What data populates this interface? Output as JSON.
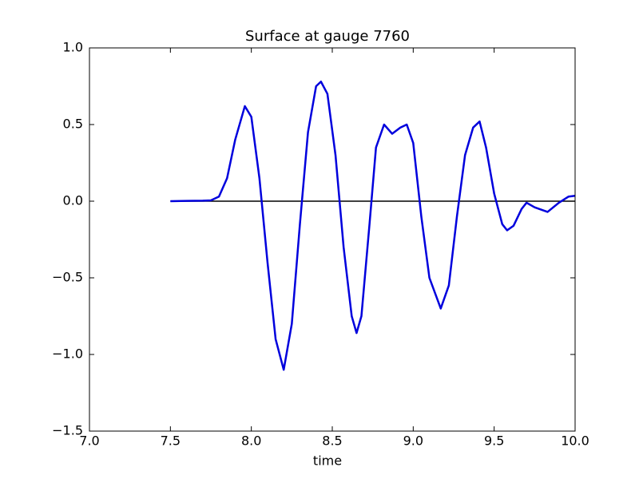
{
  "chart_data": {
    "type": "line",
    "title": "Surface at gauge 7760",
    "xlabel": "time",
    "xlim": [
      7.0,
      10.0
    ],
    "ylim": [
      -1.5,
      1.0
    ],
    "xticks": [
      {
        "value": 7.0,
        "label": "7.0"
      },
      {
        "value": 7.5,
        "label": "7.5"
      },
      {
        "value": 8.0,
        "label": "8.0"
      },
      {
        "value": 8.5,
        "label": "8.5"
      },
      {
        "value": 9.0,
        "label": "9.0"
      },
      {
        "value": 9.5,
        "label": "9.5"
      },
      {
        "value": 10.0,
        "label": "10.0"
      }
    ],
    "yticks": [
      {
        "value": -1.5,
        "label": "−1.5"
      },
      {
        "value": -1.0,
        "label": "−1.0"
      },
      {
        "value": -0.5,
        "label": "−0.5"
      },
      {
        "value": 0.0,
        "label": "0.0"
      },
      {
        "value": 0.5,
        "label": "0.5"
      },
      {
        "value": 1.0,
        "label": "1.0"
      }
    ],
    "series": [
      {
        "color": "#000000",
        "x": [
          7.5,
          10.0
        ],
        "values": [
          0,
          0
        ]
      },
      {
        "color": "#0000dd",
        "x": [
          7.5,
          7.6,
          7.7,
          7.75,
          7.8,
          7.85,
          7.9,
          7.96,
          8.0,
          8.05,
          8.1,
          8.15,
          8.2,
          8.25,
          8.3,
          8.35,
          8.4,
          8.43,
          8.47,
          8.52,
          8.57,
          8.62,
          8.65,
          8.68,
          8.73,
          8.77,
          8.82,
          8.87,
          8.92,
          8.96,
          9.0,
          9.05,
          9.1,
          9.17,
          9.22,
          9.27,
          9.32,
          9.37,
          9.41,
          9.45,
          9.5,
          9.55,
          9.58,
          9.62,
          9.67,
          9.7,
          9.75,
          9.83,
          9.9,
          9.96,
          10.0
        ],
        "values": [
          0.0,
          0.002,
          0.003,
          0.005,
          0.03,
          0.15,
          0.4,
          0.62,
          0.55,
          0.15,
          -0.4,
          -0.9,
          -1.1,
          -0.8,
          -0.15,
          0.45,
          0.75,
          0.78,
          0.7,
          0.3,
          -0.3,
          -0.75,
          -0.86,
          -0.75,
          -0.15,
          0.35,
          0.5,
          0.44,
          0.48,
          0.5,
          0.38,
          -0.1,
          -0.5,
          -0.7,
          -0.55,
          -0.1,
          0.3,
          0.48,
          0.52,
          0.35,
          0.05,
          -0.15,
          -0.19,
          -0.16,
          -0.05,
          -0.01,
          -0.04,
          -0.07,
          -0.01,
          0.03,
          0.035
        ]
      }
    ]
  }
}
